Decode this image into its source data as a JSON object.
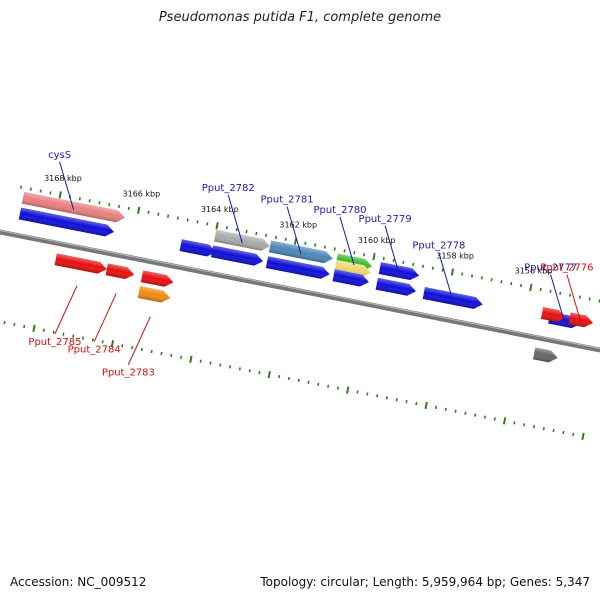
{
  "title": "Pseudomonas putida F1, complete genome",
  "footer": {
    "accession": "Accession: NC_009512",
    "topology": "Topology: circular; Length: 5,959,964 bp; Genes: 5,347"
  },
  "colors": {
    "backbone": "#777777",
    "tick": "#2f7d1f",
    "label_forward": "#1a1aa8",
    "label_reverse": "#cc1111",
    "gene_blue": "#1010d8",
    "gene_red": "#e81010",
    "gene_pink": "#e88080",
    "gene_gray": "#aaaaaa",
    "gene_steelblue": "#4d87b8",
    "gene_green": "#3dbb2a",
    "gene_yellow": "#ecd870",
    "gene_orange": "#f08a10",
    "gene_darkgray": "#666666"
  },
  "kbp_labels": [
    {
      "text": "3168 kbp",
      "pos": 3168
    },
    {
      "text": "3166 kbp",
      "pos": 3166
    },
    {
      "text": "3164 kbp",
      "pos": 3164
    },
    {
      "text": "3162 kbp",
      "pos": 3162
    },
    {
      "text": "3160 kbp",
      "pos": 3160
    },
    {
      "text": "3158 kbp",
      "pos": 3158
    },
    {
      "text": "3156 kbp",
      "pos": 3156
    }
  ],
  "genes": [
    {
      "name": "cysS",
      "start": 3168.9,
      "end": 3166.3,
      "track": 1,
      "color": "gene_pink",
      "labeled": true
    },
    {
      "name": "",
      "start": 3168.9,
      "end": 3166.5,
      "track": 0,
      "color": "gene_blue",
      "labeled": false
    },
    {
      "name": "",
      "start": 3164.8,
      "end": 3163.9,
      "track": 0,
      "color": "gene_blue",
      "labeled": false
    },
    {
      "name": "Pput_2782",
      "start": 3164.0,
      "end": 3162.6,
      "track": 1,
      "color": "gene_gray",
      "labeled": true
    },
    {
      "name": "",
      "start": 3164.0,
      "end": 3162.7,
      "track": 0,
      "color": "gene_blue",
      "labeled": false
    },
    {
      "name": "Pput_2781",
      "start": 3162.6,
      "end": 3161.0,
      "track": 1,
      "color": "gene_steelblue",
      "labeled": true
    },
    {
      "name": "",
      "start": 3162.6,
      "end": 3161.0,
      "track": 0,
      "color": "gene_blue",
      "labeled": false
    },
    {
      "name": "Pput_2780",
      "start": 3160.9,
      "end": 3160.0,
      "track": 1,
      "color": "gene_green",
      "labeled": true
    },
    {
      "name": "",
      "start": 3160.9,
      "end": 3160.0,
      "track": 0.6,
      "color": "gene_yellow",
      "labeled": false
    },
    {
      "name": "",
      "start": 3160.9,
      "end": 3160.0,
      "track": 0,
      "color": "gene_blue",
      "labeled": false
    },
    {
      "name": "Pput_2779",
      "start": 3159.8,
      "end": 3158.8,
      "track": 1,
      "color": "gene_blue",
      "labeled": true
    },
    {
      "name": "",
      "start": 3159.8,
      "end": 3158.8,
      "track": 0,
      "color": "gene_blue",
      "labeled": false
    },
    {
      "name": "Pput_2778",
      "start": 3158.6,
      "end": 3157.1,
      "track": 0,
      "color": "gene_blue",
      "labeled": true
    },
    {
      "name": "Pput_2777",
      "start": 3155.4,
      "end": 3154.6,
      "track": 0,
      "color": "gene_blue",
      "labeled": true
    },
    {
      "name": "",
      "start": 3155.6,
      "end": 3155.0,
      "track": -1,
      "color": "gene_darkgray",
      "labeled": false
    },
    {
      "name": "Pput_2785",
      "start": 3167.8,
      "end": 3166.5,
      "track": -1,
      "color": "gene_red",
      "labeled": true
    },
    {
      "name": "Pput_2784",
      "start": 3166.5,
      "end": 3165.8,
      "track": -1,
      "color": "gene_red",
      "labeled": true
    },
    {
      "name": "",
      "start": 3165.6,
      "end": 3164.8,
      "track": -1,
      "color": "gene_red",
      "labeled": false
    },
    {
      "name": "Pput_2783",
      "start": 3165.6,
      "end": 3164.8,
      "track": -2,
      "color": "gene_orange",
      "labeled": true
    },
    {
      "name": "",
      "start": 3155.6,
      "end": 3155.0,
      "track": 0.2,
      "color": "gene_red",
      "labeled": false
    },
    {
      "name": "Pput_2776",
      "start": 3154.9,
      "end": 3154.3,
      "track": 0.2,
      "color": "gene_red",
      "labeled": true
    }
  ]
}
